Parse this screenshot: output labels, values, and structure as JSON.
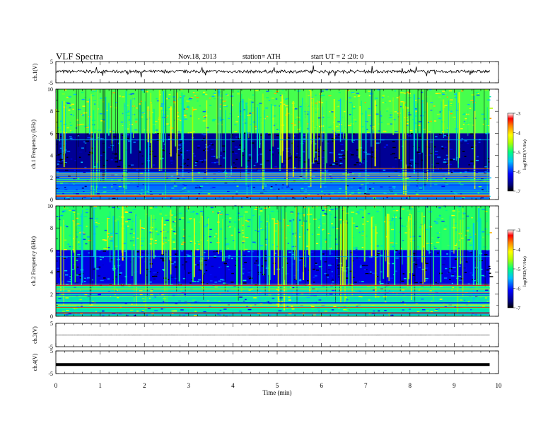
{
  "header": {
    "title": "VLF  Spectra",
    "date": "Nov.18, 2013",
    "station": "station= ATH",
    "start": "start  UT =  2  :20: 0"
  },
  "chart_data": [
    {
      "type": "line",
      "panel": "ch.1 waveform",
      "ylabel": "ch.1(V)",
      "ylim": [
        -5,
        5
      ],
      "yticks": [
        "5",
        "-5"
      ],
      "xlim": [
        0,
        10
      ],
      "series_color": "#000000",
      "approx_level": 0.3,
      "data_end_min": 9.8
    },
    {
      "type": "heatmap",
      "panel": "ch.1 spectrogram",
      "ylabel": "ch.1 Frequency  (kHz)",
      "ylim": [
        0,
        10
      ],
      "yticks": [
        "0",
        "2",
        "4",
        "6",
        "8",
        "10"
      ],
      "xlim": [
        0,
        10
      ],
      "data_end_min": 9.8,
      "colorbar": {
        "label": "log(PSD(V²/Hz)",
        "range": [
          -7,
          -3
        ],
        "ticks": [
          "-3",
          "-4",
          "-5",
          "-6",
          "-7"
        ]
      },
      "bands": [
        {
          "f": [
            6,
            10
          ],
          "log_psd": -4.8
        },
        {
          "f": [
            2.5,
            6
          ],
          "log_psd": -6.6
        },
        {
          "f": [
            0,
            2.5
          ],
          "log_psd": -5.8
        }
      ]
    },
    {
      "type": "heatmap",
      "panel": "ch.2 spectrogram",
      "ylabel": "ch.2 Frequency  (kHz)",
      "ylim": [
        0,
        10
      ],
      "yticks": [
        "0",
        "2",
        "4",
        "6",
        "8",
        "10"
      ],
      "xlim": [
        0,
        10
      ],
      "data_end_min": 9.8,
      "colorbar": {
        "label": "log(PSD(V²/Hz)",
        "range": [
          -7,
          -3
        ],
        "ticks": [
          "-3",
          "-4",
          "-5",
          "-6",
          "-7"
        ]
      },
      "bands": [
        {
          "f": [
            6,
            10
          ],
          "log_psd": -4.9
        },
        {
          "f": [
            2.8,
            6
          ],
          "log_psd": -6.3
        },
        {
          "f": [
            0,
            2.8
          ],
          "log_psd": -5.2
        }
      ]
    },
    {
      "type": "line",
      "panel": "ch.3 waveform",
      "ylabel": "ch.3(V)",
      "ylim": [
        -5,
        5
      ],
      "yticks": [
        "5",
        "-5"
      ],
      "xlim": [
        0,
        10
      ],
      "series_color": "#444444",
      "approx_level": 0,
      "data_end_min": 9.8
    },
    {
      "type": "line",
      "panel": "ch.4 waveform",
      "ylabel": "ch.4(V)",
      "ylim": [
        -5,
        5
      ],
      "yticks": [
        "5",
        "-5"
      ],
      "xlim": [
        0,
        10
      ],
      "series_color": "#000000",
      "approx_level": -1,
      "data_end_min": 9.8
    }
  ],
  "xaxis": {
    "label": "Time  (min)",
    "ticks": [
      "0",
      "1",
      "2",
      "3",
      "4",
      "5",
      "6",
      "7",
      "8",
      "9",
      "10"
    ]
  }
}
